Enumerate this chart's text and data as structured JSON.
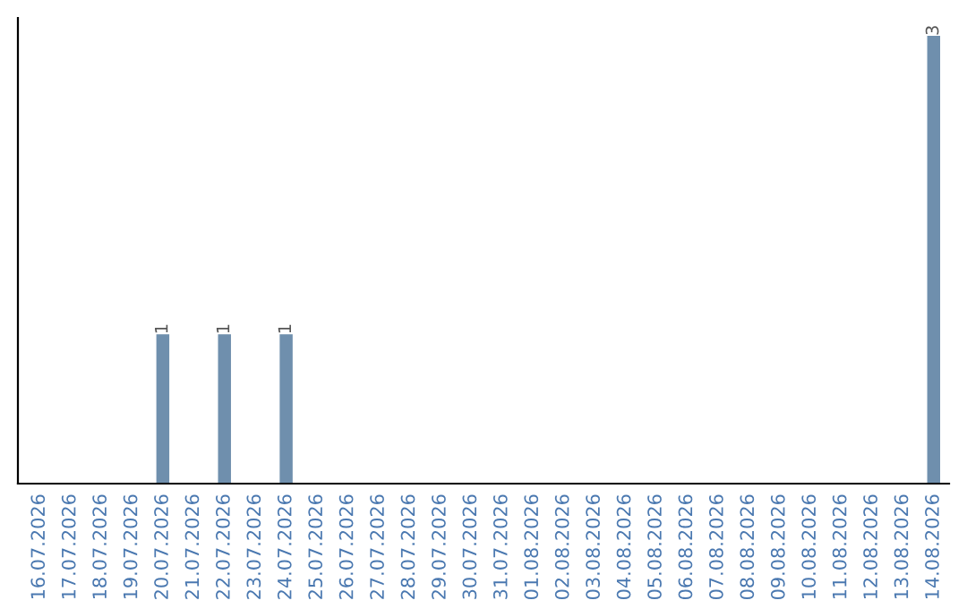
{
  "chart_data": {
    "type": "bar",
    "categories": [
      "16.07.2026",
      "17.07.2026",
      "18.07.2026",
      "19.07.2026",
      "20.07.2026",
      "21.07.2026",
      "22.07.2026",
      "23.07.2026",
      "24.07.2026",
      "25.07.2026",
      "26.07.2026",
      "27.07.2026",
      "28.07.2026",
      "29.07.2026",
      "30.07.2026",
      "31.07.2026",
      "01.08.2026",
      "02.08.2026",
      "03.08.2026",
      "04.08.2026",
      "05.08.2026",
      "06.08.2026",
      "07.08.2026",
      "08.08.2026",
      "09.08.2026",
      "10.08.2026",
      "11.08.2026",
      "12.08.2026",
      "13.08.2026",
      "14.08.2026"
    ],
    "values": [
      0,
      0,
      0,
      0,
      1,
      0,
      1,
      0,
      1,
      0,
      0,
      0,
      0,
      0,
      0,
      0,
      0,
      0,
      0,
      0,
      0,
      0,
      0,
      0,
      0,
      0,
      0,
      0,
      0,
      3
    ],
    "value_labels": [
      null,
      null,
      null,
      null,
      "1",
      null,
      "1",
      null,
      "1",
      null,
      null,
      null,
      null,
      null,
      null,
      null,
      null,
      null,
      null,
      null,
      null,
      null,
      null,
      null,
      null,
      null,
      null,
      null,
      null,
      "3"
    ],
    "color": "#6f8fad",
    "ylim": [
      0,
      3.12
    ],
    "grid": false
  }
}
